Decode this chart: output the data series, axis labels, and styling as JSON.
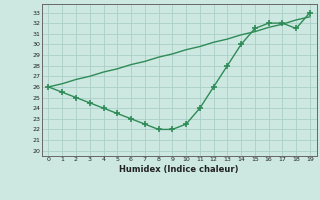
{
  "line1_x": [
    0,
    1,
    2,
    3,
    4,
    5,
    6,
    7,
    8,
    9,
    10,
    11,
    12,
    13,
    14,
    15,
    16,
    17,
    18,
    19
  ],
  "line1_y": [
    26,
    25.5,
    25,
    24.5,
    24,
    23.5,
    23,
    22.5,
    22,
    22,
    22.5,
    24,
    26,
    28,
    30,
    31.5,
    32,
    32,
    31.5,
    33
  ],
  "line2_x": [
    0,
    1,
    2,
    3,
    4,
    5,
    6,
    7,
    8,
    9,
    10,
    11,
    12,
    13,
    14,
    15,
    16,
    17,
    18,
    19
  ],
  "line2_y": [
    26,
    26.3,
    26.7,
    27,
    27.4,
    27.7,
    28.1,
    28.4,
    28.8,
    29.1,
    29.5,
    29.8,
    30.2,
    30.5,
    30.9,
    31.2,
    31.6,
    31.9,
    32.3,
    32.6
  ],
  "color": "#2e8b57",
  "bg_color": "#cce8e0",
  "grid_color": "#aacfc8",
  "xlabel": "Humidex (Indice chaleur)",
  "xlim": [
    -0.5,
    19.5
  ],
  "ylim": [
    19.5,
    33.8
  ],
  "yticks": [
    20,
    21,
    22,
    23,
    24,
    25,
    26,
    27,
    28,
    29,
    30,
    31,
    32,
    33
  ],
  "xticks": [
    0,
    1,
    2,
    3,
    4,
    5,
    6,
    7,
    8,
    9,
    10,
    11,
    12,
    13,
    14,
    15,
    16,
    17,
    18,
    19
  ],
  "marker": "+",
  "linewidth": 1.0,
  "markersize": 4,
  "markeredgewidth": 1.2
}
